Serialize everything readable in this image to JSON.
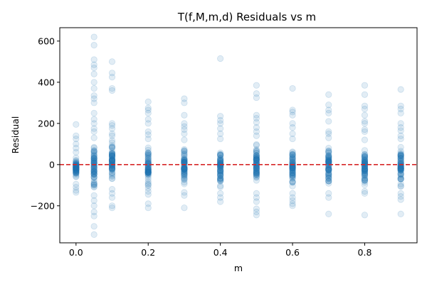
{
  "chart_data": {
    "type": "scatter",
    "title": "T(f,M,m,d) Residuals vs m",
    "xlabel": "m",
    "ylabel": "Residual",
    "xlim": [
      -0.045,
      0.945
    ],
    "ylim": [
      -380,
      665
    ],
    "xticks": [
      0.0,
      0.2,
      0.4,
      0.6,
      0.8
    ],
    "xtick_labels": [
      "0.0",
      "0.2",
      "0.4",
      "0.6",
      "0.8"
    ],
    "yticks": [
      -200,
      0,
      200,
      400,
      600
    ],
    "ytick_labels": [
      "−200",
      "0",
      "200",
      "400",
      "600"
    ],
    "reference_line": {
      "y": 0,
      "color": "#d62728",
      "style": "dashed"
    },
    "point_color": "#1f77b4",
    "point_alpha": 0.13,
    "grid": false,
    "series": [
      {
        "groups": [
          {
            "x": 0.0,
            "outliers": [
              195,
              140,
              125,
              100,
              80,
              60,
              -95,
              -110,
              -125,
              -135
            ],
            "core_range": [
              -85,
              50
            ]
          },
          {
            "x": 0.05,
            "outliers": [
              620,
              580,
              510,
              485,
              470,
              440,
              400,
              370,
              335,
              320,
              300,
              250,
              220,
              200,
              175,
              160,
              130,
              -150,
              -175,
              -200,
              -230,
              -250,
              -300,
              -340
            ],
            "core_range": [
              -140,
              120
            ]
          },
          {
            "x": 0.1,
            "outliers": [
              500,
              445,
              425,
              370,
              360,
              200,
              190,
              175,
              150,
              140,
              -120,
              -140,
              -160,
              -200,
              -210
            ],
            "core_range": [
              -110,
              130
            ]
          },
          {
            "x": 0.2,
            "outliers": [
              305,
              275,
              265,
              250,
              220,
              200,
              160,
              145,
              125,
              -130,
              -145,
              -190,
              -210
            ],
            "core_range": [
              -120,
              110
            ]
          },
          {
            "x": 0.3,
            "outliers": [
              320,
              300,
              240,
              200,
              185,
              170,
              150,
              120,
              -135,
              -150,
              -210
            ],
            "core_range": [
              -120,
              100
            ]
          },
          {
            "x": 0.4,
            "outliers": [
              515,
              235,
              215,
              200,
              175,
              150,
              125,
              -140,
              -160,
              -180
            ],
            "core_range": [
              -125,
              105
            ]
          },
          {
            "x": 0.5,
            "outliers": [
              385,
              345,
              325,
              240,
              225,
              205,
              180,
              160,
              140,
              -140,
              -160,
              -180,
              -215,
              -230,
              -245
            ],
            "core_range": [
              -125,
              120
            ]
          },
          {
            "x": 0.6,
            "outliers": [
              370,
              265,
              255,
              240,
              200,
              180,
              150,
              125,
              -140,
              -160,
              -175,
              -190,
              -200
            ],
            "core_range": [
              -120,
              110
            ]
          },
          {
            "x": 0.7,
            "outliers": [
              340,
              290,
              265,
              250,
              210,
              160,
              150,
              130,
              -140,
              -160,
              -240
            ],
            "core_range": [
              -125,
              110
            ]
          },
          {
            "x": 0.8,
            "outliers": [
              385,
              340,
              285,
              270,
              240,
              210,
              200,
              170,
              160,
              120,
              -130,
              -140,
              -245
            ],
            "core_range": [
              -120,
              100
            ]
          },
          {
            "x": 0.9,
            "outliers": [
              365,
              285,
              270,
              250,
              200,
              180,
              165,
              140,
              125,
              -140,
              -155,
              -170,
              -240
            ],
            "core_range": [
              -125,
              100
            ]
          }
        ]
      }
    ]
  }
}
